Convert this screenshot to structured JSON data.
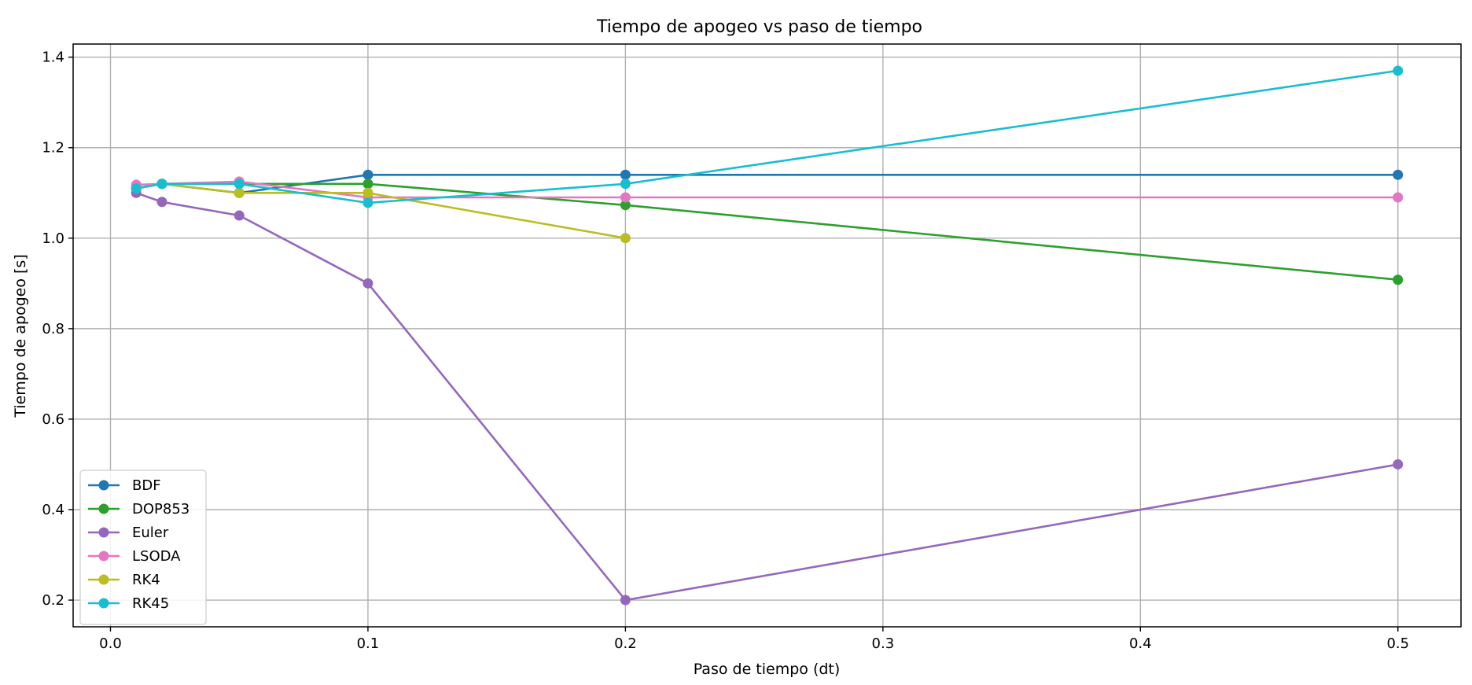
{
  "chart_data": {
    "type": "line",
    "title": "Tiempo de apogeo vs paso de tiempo",
    "xlabel": "Paso de tiempo (dt)",
    "ylabel": "Tiempo de apogeo [s]",
    "xlim": [
      -0.0145,
      0.5245
    ],
    "ylim": [
      0.141,
      1.429
    ],
    "xticks": [
      0.0,
      0.1,
      0.2,
      0.3,
      0.4,
      0.5
    ],
    "xtick_labels": [
      "0.0",
      "0.1",
      "0.2",
      "0.3",
      "0.4",
      "0.5"
    ],
    "yticks": [
      0.2,
      0.4,
      0.6,
      0.8,
      1.0,
      1.2,
      1.4
    ],
    "ytick_labels": [
      "0.2",
      "0.4",
      "0.6",
      "0.8",
      "1.0",
      "1.2",
      "1.4"
    ],
    "grid": true,
    "legend_position": "lower-left",
    "series": [
      {
        "name": "BDF",
        "color": "#1f77b4",
        "x": [
          0.01,
          0.02,
          0.05,
          0.1,
          0.2,
          0.5
        ],
        "y": [
          1.11,
          1.12,
          1.1,
          1.14,
          1.14,
          1.14
        ]
      },
      {
        "name": "DOP853",
        "color": "#2ca02c",
        "x": [
          0.01,
          0.02,
          0.05,
          0.1,
          0.2,
          0.5
        ],
        "y": [
          1.11,
          1.12,
          1.12,
          1.12,
          1.073,
          0.908
        ]
      },
      {
        "name": "Euler",
        "color": "#9467bd",
        "x": [
          0.01,
          0.02,
          0.05,
          0.1,
          0.2,
          0.5
        ],
        "y": [
          1.1,
          1.08,
          1.05,
          0.9,
          0.2,
          0.5
        ]
      },
      {
        "name": "LSODA",
        "color": "#e377c2",
        "x": [
          0.01,
          0.02,
          0.05,
          0.1,
          0.2,
          0.5
        ],
        "y": [
          1.118,
          1.12,
          1.125,
          1.09,
          1.09,
          1.09
        ]
      },
      {
        "name": "RK4",
        "color": "#bcbd22",
        "x": [
          0.01,
          0.02,
          0.05,
          0.1,
          0.2
        ],
        "y": [
          1.11,
          1.12,
          1.1,
          1.1,
          1.0
        ]
      },
      {
        "name": "RK45",
        "color": "#17becf",
        "x": [
          0.01,
          0.02,
          0.05,
          0.1,
          0.2,
          0.5
        ],
        "y": [
          1.11,
          1.12,
          1.12,
          1.078,
          1.12,
          1.37
        ]
      }
    ]
  }
}
